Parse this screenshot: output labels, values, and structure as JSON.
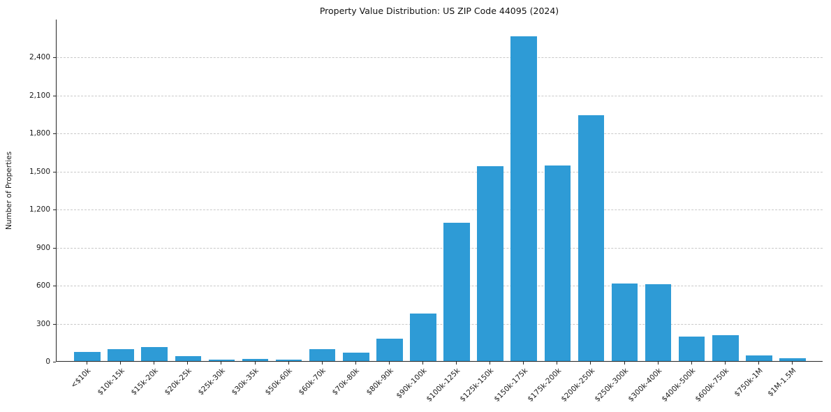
{
  "chart_data": {
    "type": "bar",
    "title": "Property Value Distribution: US ZIP Code 44095 (2024)",
    "xlabel": "",
    "ylabel": "Number of Properties",
    "categories": [
      "<$10k",
      "$10k-15k",
      "$15k-20k",
      "$20k-25k",
      "$25k-30k",
      "$30k-35k",
      "$50k-60k",
      "$60k-70k",
      "$70k-80k",
      "$80k-90k",
      "$90k-100k",
      "$100k-125k",
      "$125k-150k",
      "$150k-175k",
      "$175k-200k",
      "$200k-250k",
      "$250k-300k",
      "$300k-400k",
      "$400k-500k",
      "$600k-750k",
      "$750k-1M",
      "$1M-1.5M"
    ],
    "values": [
      70,
      95,
      110,
      40,
      12,
      15,
      10,
      95,
      65,
      175,
      375,
      1090,
      1535,
      2560,
      1545,
      1940,
      610,
      605,
      195,
      205,
      45,
      20
    ],
    "ylim": [
      0,
      2700
    ],
    "yticks": [
      0,
      300,
      600,
      900,
      1200,
      1500,
      1800,
      2100,
      2400
    ],
    "ytick_labels": [
      "0",
      "300",
      "600",
      "900",
      "1,200",
      "1,500",
      "1,800",
      "2,100",
      "2,400"
    ],
    "grid": true,
    "grid_style": "dashed",
    "legend_position": "none",
    "bar_color": "#2e9bd6"
  }
}
